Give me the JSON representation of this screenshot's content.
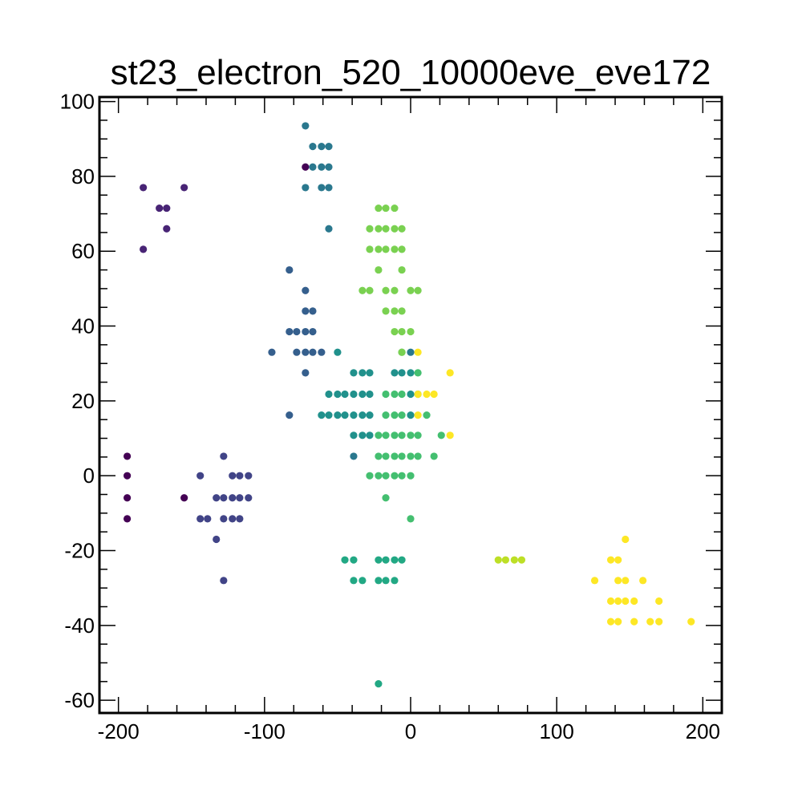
{
  "chart_data": {
    "type": "scatter",
    "title": "st23_electron_520_10000eve_eve172",
    "xlabel": "",
    "ylabel": "",
    "xlim": [
      -213,
      213
    ],
    "ylim": [
      -63.4,
      101.2
    ],
    "grid": false,
    "x_ticks": [
      -200,
      -100,
      0,
      100,
      200
    ],
    "y_ticks": [
      -60,
      -40,
      -20,
      0,
      20,
      40,
      60,
      80,
      100
    ],
    "colors": {
      "dark_purple": "#440154",
      "purple": "#482475",
      "indigo": "#414487",
      "blue": "#355f8d",
      "steel_blue": "#2a788e",
      "teal": "#21918c",
      "aqua_green": "#22a884",
      "green": "#44bf70",
      "light_green": "#7ad151",
      "lime": "#bddf26",
      "yellow": "#fde725"
    },
    "series": [
      {
        "color": "#440154",
        "points": [
          [
            -194,
            5.2
          ],
          [
            -194,
            0
          ],
          [
            -194,
            -5.9
          ],
          [
            -194,
            -11.5
          ],
          [
            -155,
            -5.9
          ],
          [
            -72,
            82.5
          ]
        ]
      },
      {
        "color": "#482475",
        "points": [
          [
            -183,
            77
          ],
          [
            -172,
            71.5
          ],
          [
            -167,
            71.5
          ],
          [
            -167,
            66
          ],
          [
            -183,
            60.5
          ],
          [
            -155,
            77
          ]
        ]
      },
      {
        "color": "#414487",
        "points": [
          [
            -128,
            5.2
          ],
          [
            -144,
            0
          ],
          [
            -122,
            0
          ],
          [
            -117,
            0
          ],
          [
            -111,
            0
          ],
          [
            -133,
            -5.9
          ],
          [
            -128,
            -5.9
          ],
          [
            -122,
            -5.9
          ],
          [
            -117,
            -5.9
          ],
          [
            -111,
            -5.9
          ],
          [
            -144,
            -11.5
          ],
          [
            -139,
            -11.5
          ],
          [
            -128,
            -11.5
          ],
          [
            -122,
            -11.5
          ],
          [
            -117,
            -11.5
          ],
          [
            -133,
            -17
          ],
          [
            -128,
            -28
          ]
        ]
      },
      {
        "color": "#355f8d",
        "points": [
          [
            -83,
            55
          ],
          [
            -72,
            49.5
          ],
          [
            -72,
            44
          ],
          [
            -67,
            44
          ],
          [
            -83,
            38.5
          ],
          [
            -78,
            38.5
          ],
          [
            -72,
            38.5
          ],
          [
            -67,
            38.5
          ],
          [
            -95,
            33
          ],
          [
            -78,
            33
          ],
          [
            -72,
            33
          ],
          [
            -67,
            33
          ],
          [
            -61,
            33
          ],
          [
            -72,
            27.5
          ],
          [
            -83,
            16.2
          ]
        ]
      },
      {
        "color": "#2a788e",
        "points": [
          [
            -72,
            93.5
          ],
          [
            -67,
            88
          ],
          [
            -61,
            88
          ],
          [
            -56,
            88
          ],
          [
            -67,
            82.5
          ],
          [
            -61,
            82.5
          ],
          [
            -56,
            82.5
          ],
          [
            -72,
            77
          ],
          [
            -61,
            77
          ],
          [
            -56,
            77
          ],
          [
            -56,
            66
          ],
          [
            -39,
            5.2
          ],
          [
            0,
            33
          ]
        ]
      },
      {
        "color": "#21918c",
        "points": [
          [
            -50,
            33
          ],
          [
            -39,
            27.5
          ],
          [
            -33,
            27.5
          ],
          [
            -28,
            27.5
          ],
          [
            -11,
            27.5
          ],
          [
            -6,
            27.5
          ],
          [
            0,
            27.5
          ],
          [
            -56,
            21.8
          ],
          [
            -50,
            21.8
          ],
          [
            -45,
            21.8
          ],
          [
            -39,
            21.8
          ],
          [
            -33,
            21.8
          ],
          [
            -28,
            21.8
          ],
          [
            0,
            21.8
          ],
          [
            -61,
            16.2
          ],
          [
            -56,
            16.2
          ],
          [
            -50,
            16.2
          ],
          [
            -45,
            16.2
          ],
          [
            -39,
            16.2
          ],
          [
            -33,
            16.2
          ],
          [
            -28,
            16.2
          ],
          [
            0,
            16.2
          ],
          [
            -39,
            10.8
          ],
          [
            -33,
            10.8
          ],
          [
            -28,
            10.8
          ]
        ]
      },
      {
        "color": "#22a884",
        "points": [
          [
            -45,
            -22.5
          ],
          [
            -39,
            -22.5
          ],
          [
            -22,
            -22.5
          ],
          [
            -17,
            -22.5
          ],
          [
            -11,
            -22.5
          ],
          [
            -6,
            -22.5
          ],
          [
            -39,
            -28
          ],
          [
            -33,
            -28
          ],
          [
            -22,
            -28
          ],
          [
            -17,
            -28
          ],
          [
            -11,
            -28
          ],
          [
            -22,
            -55.6
          ]
        ]
      },
      {
        "color": "#44bf70",
        "points": [
          [
            -17,
            21.8
          ],
          [
            -11,
            21.8
          ],
          [
            -6,
            21.8
          ],
          [
            -17,
            16.2
          ],
          [
            -11,
            16.2
          ],
          [
            -6,
            16.2
          ],
          [
            11,
            16.2
          ],
          [
            -22,
            10.8
          ],
          [
            -17,
            10.8
          ],
          [
            -11,
            10.8
          ],
          [
            -6,
            10.8
          ],
          [
            0,
            10.8
          ],
          [
            5,
            10.8
          ],
          [
            21,
            10.8
          ],
          [
            -22,
            5.2
          ],
          [
            -17,
            5.2
          ],
          [
            -11,
            5.2
          ],
          [
            -6,
            5.2
          ],
          [
            0,
            5.2
          ],
          [
            5,
            5.2
          ],
          [
            16,
            5.2
          ],
          [
            -28,
            0
          ],
          [
            -22,
            0
          ],
          [
            -17,
            0
          ],
          [
            -11,
            0
          ],
          [
            -6,
            0
          ],
          [
            0,
            0
          ],
          [
            -17,
            -5.9
          ],
          [
            0,
            -11.5
          ],
          [
            -6,
            33
          ],
          [
            5,
            27.5
          ],
          [
            5,
            21.8
          ]
        ]
      },
      {
        "color": "#7ad151",
        "points": [
          [
            -22,
            71.5
          ],
          [
            -17,
            71.5
          ],
          [
            -11,
            71.5
          ],
          [
            -28,
            66
          ],
          [
            -22,
            66
          ],
          [
            -17,
            66
          ],
          [
            -11,
            66
          ],
          [
            -6,
            66
          ],
          [
            -28,
            60.5
          ],
          [
            -22,
            60.5
          ],
          [
            -17,
            60.5
          ],
          [
            -11,
            60.5
          ],
          [
            -6,
            60.5
          ],
          [
            -22,
            55
          ],
          [
            -6,
            55
          ],
          [
            -33,
            49.5
          ],
          [
            -28,
            49.5
          ],
          [
            -17,
            49.5
          ],
          [
            -11,
            49.5
          ],
          [
            0,
            49.5
          ],
          [
            5,
            49.5
          ],
          [
            -17,
            44
          ],
          [
            -11,
            44
          ],
          [
            -6,
            44
          ],
          [
            -11,
            38.5
          ],
          [
            -6,
            38.5
          ],
          [
            0,
            38.5
          ],
          [
            -6,
            33
          ]
        ]
      },
      {
        "color": "#bddf26",
        "points": [
          [
            60,
            -22.5
          ],
          [
            65,
            -22.5
          ],
          [
            71,
            -22.5
          ],
          [
            76,
            -22.5
          ]
        ]
      },
      {
        "color": "#fde725",
        "points": [
          [
            5,
            33
          ],
          [
            27,
            27.5
          ],
          [
            5,
            21.8
          ],
          [
            16,
            21.8
          ],
          [
            11,
            21.8
          ],
          [
            5,
            16.2
          ],
          [
            27,
            10.8
          ],
          [
            147,
            -17
          ],
          [
            137,
            -22.5
          ],
          [
            142,
            -22.5
          ],
          [
            126,
            -28
          ],
          [
            142,
            -28
          ],
          [
            147,
            -28
          ],
          [
            159,
            -28
          ],
          [
            137,
            -33.5
          ],
          [
            142,
            -33.5
          ],
          [
            147,
            -33.5
          ],
          [
            153,
            -33.5
          ],
          [
            170,
            -33.5
          ],
          [
            137,
            -39
          ],
          [
            142,
            -39
          ],
          [
            153,
            -39
          ],
          [
            164,
            -39
          ],
          [
            170,
            -39
          ],
          [
            192,
            -39
          ]
        ]
      }
    ]
  }
}
